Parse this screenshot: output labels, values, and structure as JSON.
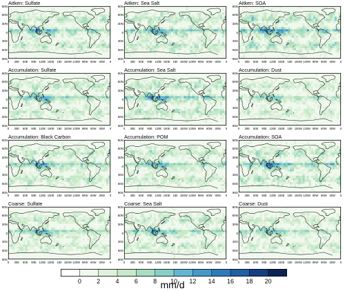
{
  "panels": [
    {
      "title": "Aitken: Sulfate",
      "intensity": 1.0
    },
    {
      "title": "Aitken: Sea Salt",
      "intensity": 1.05
    },
    {
      "title": "Aitken: SOA",
      "intensity": 1.15
    },
    {
      "title": "Accumulation: Sulfate",
      "intensity": 0.95
    },
    {
      "title": "Accumulation: Sea Salt",
      "intensity": 1.05
    },
    {
      "title": "Accumulation: Dust",
      "intensity": 0.8
    },
    {
      "title": "Accumulation: Black Carbon",
      "intensity": 1.0
    },
    {
      "title": "Accumulation: POM",
      "intensity": 0.95
    },
    {
      "title": "Accumulation: SOA",
      "intensity": 1.1
    },
    {
      "title": "Coarse: Sulfate",
      "intensity": 0.9
    },
    {
      "title": "Coarse: Sea Salt",
      "intensity": 0.95
    },
    {
      "title": "Coarse: Dust",
      "intensity": 0.85
    }
  ],
  "axes": {
    "lat_labels": [
      "90N",
      "60N",
      "30N",
      "0",
      "30S",
      "60S",
      "90S"
    ],
    "lon_labels": [
      "0",
      "30E",
      "60E",
      "90E",
      "120E",
      "150E",
      "180",
      "150W",
      "120W",
      "90W",
      "60W",
      "30W",
      "0"
    ]
  },
  "colorbar": {
    "units": "mm/d",
    "ticks": [
      "0",
      "2",
      "4",
      "6",
      "8",
      "10",
      "12",
      "14",
      "16",
      "18",
      "20"
    ],
    "colors": [
      "#ffffff",
      "#f1f9ef",
      "#dff1dc",
      "#c7e9c9",
      "#a9ddc3",
      "#86cfc6",
      "#62b6cf",
      "#449ac6",
      "#2f7db8",
      "#1f5fa4",
      "#163f80",
      "#0b2454"
    ]
  },
  "colors": {
    "coastline": "#111111",
    "frame": "#000000",
    "background": "#ffffff"
  }
}
